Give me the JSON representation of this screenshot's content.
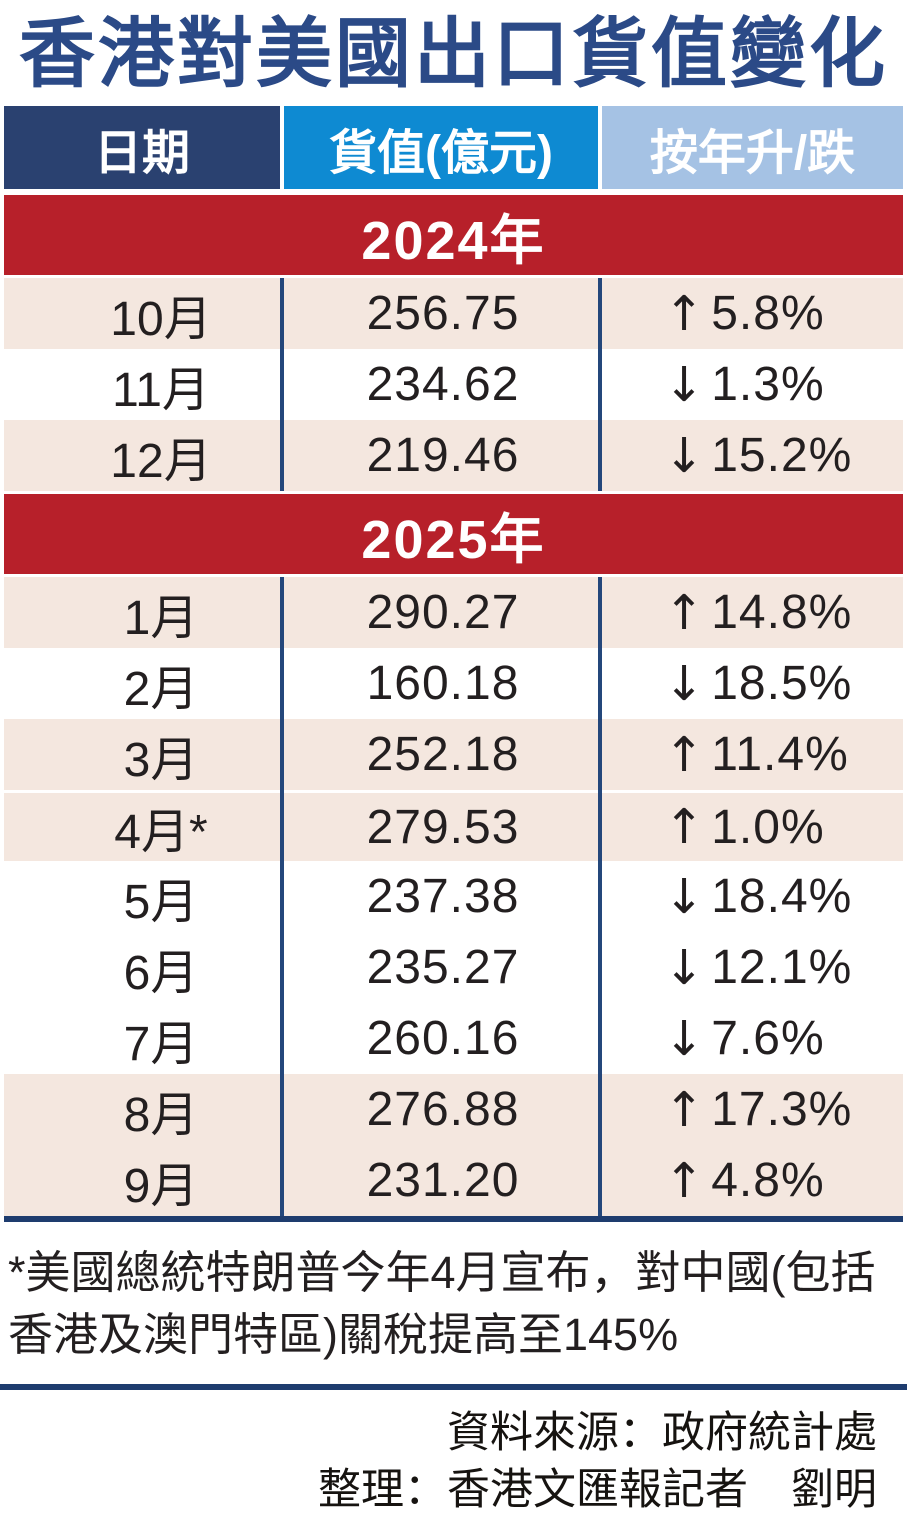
{
  "chart_data": {
    "type": "table",
    "title": "香港對美國出口貨值變化",
    "columns": [
      "日期",
      "貨值(億元)",
      "按年升/跌"
    ],
    "sections": [
      {
        "year_label": "2024年",
        "rows": [
          {
            "month": "10月",
            "value": "256.75",
            "direction": "up",
            "change_label": "5.8%",
            "change_pct": 5.8,
            "shaded": true,
            "separator_above": false
          },
          {
            "month": "11月",
            "value": "234.62",
            "direction": "down",
            "change_label": "1.3%",
            "change_pct": -1.3,
            "shaded": false,
            "separator_above": false
          },
          {
            "month": "12月",
            "value": "219.46",
            "direction": "down",
            "change_label": "15.2%",
            "change_pct": -15.2,
            "shaded": true,
            "separator_above": false
          }
        ]
      },
      {
        "year_label": "2025年",
        "rows": [
          {
            "month": "1月",
            "value": "290.27",
            "direction": "up",
            "change_label": "14.8%",
            "change_pct": 14.8,
            "shaded": true,
            "separator_above": false
          },
          {
            "month": "2月",
            "value": "160.18",
            "direction": "down",
            "change_label": "18.5%",
            "change_pct": -18.5,
            "shaded": false,
            "separator_above": false
          },
          {
            "month": "3月",
            "value": "252.18",
            "direction": "up",
            "change_label": "11.4%",
            "change_pct": 11.4,
            "shaded": true,
            "separator_above": false
          },
          {
            "month": "4月*",
            "value": "279.53",
            "direction": "up",
            "change_label": "1.0%",
            "change_pct": 1.0,
            "shaded": true,
            "separator_above": true
          },
          {
            "month": "5月",
            "value": "237.38",
            "direction": "down",
            "change_label": "18.4%",
            "change_pct": -18.4,
            "shaded": false,
            "separator_above": false
          },
          {
            "month": "6月",
            "value": "235.27",
            "direction": "down",
            "change_label": "12.1%",
            "change_pct": -12.1,
            "shaded": false,
            "separator_above": false
          },
          {
            "month": "7月",
            "value": "260.16",
            "direction": "down",
            "change_label": "7.6%",
            "change_pct": -7.6,
            "shaded": false,
            "separator_above": false
          },
          {
            "month": "8月",
            "value": "276.88",
            "direction": "up",
            "change_label": "17.3%",
            "change_pct": 17.3,
            "shaded": true,
            "separator_above": false
          },
          {
            "month": "9月",
            "value": "231.20",
            "direction": "up",
            "change_label": "4.8%",
            "change_pct": 4.8,
            "shaded": true,
            "separator_above": false
          }
        ]
      }
    ],
    "annotation": "*美國總統特朗普今年4月宣布，對中國(包括香港及澳門特區)關稅提高至145%",
    "legend_position": "none",
    "grid": false
  },
  "arrows": {
    "up": "↑",
    "down": "↓"
  },
  "credits": {
    "source": "資料來源：政府統計處",
    "compiled_by": "整理：香港文匯報記者　劉明"
  },
  "colors": {
    "title_navy": "#2b4a87",
    "header_date_bg": "#2a4170",
    "header_value_bg": "#0e8ad2",
    "header_change_bg": "#a5c2e4",
    "year_banner_red": "#b7202a",
    "shaded_row_bg": "#f4e7df",
    "column_divider_navy": "#24477b",
    "rule_navy": "#1e3c6e",
    "text_black": "#231f20"
  }
}
